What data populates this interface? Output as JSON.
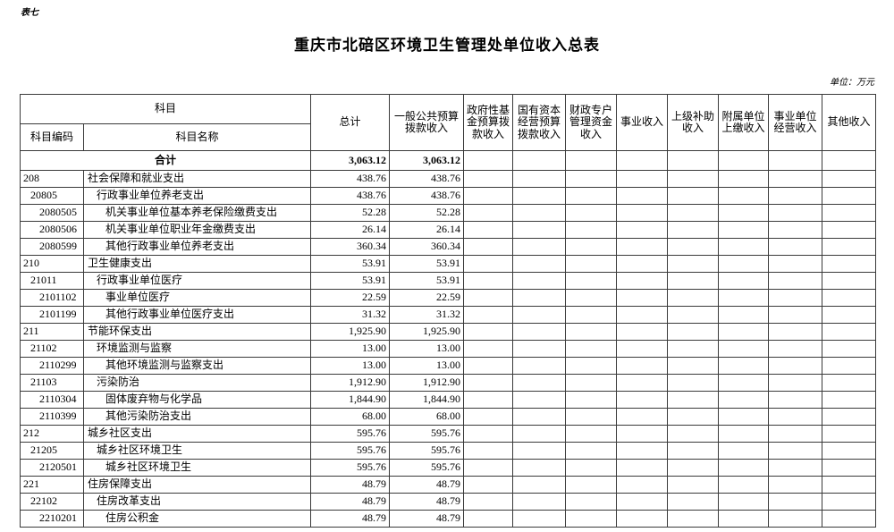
{
  "page": {
    "table_tag": "表七",
    "title": "重庆市北碚区环境卫生管理处单位收入总表",
    "unit_note": "单位：万元"
  },
  "colors": {
    "background": "#ffffff",
    "text": "#000000",
    "grid": "#3a3a3a"
  },
  "table": {
    "header": {
      "subject_group": "科目",
      "code": "科目编码",
      "name": "科目名称",
      "columns": [
        "总计",
        "一般公共预算拨款收入",
        "政府性基金预算拨款收入",
        "国有资本经营预算拨款收入",
        "财政专户管理资金收入",
        "事业收入",
        "上级补助收入",
        "附属单位上缴收入",
        "事业单位经营收入",
        "其他收入"
      ]
    },
    "total_row": {
      "label": "合计",
      "total": "3,063.12",
      "general_public_budget": "3,063.12"
    },
    "rows": [
      {
        "code": "208",
        "name": "社会保障和就业支出",
        "level": 1,
        "total": "438.76",
        "general": "438.76"
      },
      {
        "code": "20805",
        "name": "行政事业单位养老支出",
        "level": 2,
        "total": "438.76",
        "general": "438.76"
      },
      {
        "code": "2080505",
        "name": "机关事业单位基本养老保险缴费支出",
        "level": 3,
        "total": "52.28",
        "general": "52.28"
      },
      {
        "code": "2080506",
        "name": "机关事业单位职业年金缴费支出",
        "level": 3,
        "total": "26.14",
        "general": "26.14"
      },
      {
        "code": "2080599",
        "name": "其他行政事业单位养老支出",
        "level": 3,
        "total": "360.34",
        "general": "360.34"
      },
      {
        "code": "210",
        "name": "卫生健康支出",
        "level": 1,
        "total": "53.91",
        "general": "53.91"
      },
      {
        "code": "21011",
        "name": "行政事业单位医疗",
        "level": 2,
        "total": "53.91",
        "general": "53.91"
      },
      {
        "code": "2101102",
        "name": "事业单位医疗",
        "level": 3,
        "total": "22.59",
        "general": "22.59"
      },
      {
        "code": "2101199",
        "name": "其他行政事业单位医疗支出",
        "level": 3,
        "total": "31.32",
        "general": "31.32"
      },
      {
        "code": "211",
        "name": "节能环保支出",
        "level": 1,
        "total": "1,925.90",
        "general": "1,925.90"
      },
      {
        "code": "21102",
        "name": "环境监测与监察",
        "level": 2,
        "total": "13.00",
        "general": "13.00"
      },
      {
        "code": "2110299",
        "name": "其他环境监测与监察支出",
        "level": 3,
        "total": "13.00",
        "general": "13.00"
      },
      {
        "code": "21103",
        "name": "污染防治",
        "level": 2,
        "total": "1,912.90",
        "general": "1,912.90"
      },
      {
        "code": "2110304",
        "name": "固体废弃物与化学品",
        "level": 3,
        "total": "1,844.90",
        "general": "1,844.90"
      },
      {
        "code": "2110399",
        "name": "其他污染防治支出",
        "level": 3,
        "total": "68.00",
        "general": "68.00"
      },
      {
        "code": "212",
        "name": "城乡社区支出",
        "level": 1,
        "total": "595.76",
        "general": "595.76"
      },
      {
        "code": "21205",
        "name": "城乡社区环境卫生",
        "level": 2,
        "total": "595.76",
        "general": "595.76"
      },
      {
        "code": "2120501",
        "name": "城乡社区环境卫生",
        "level": 3,
        "total": "595.76",
        "general": "595.76"
      },
      {
        "code": "221",
        "name": "住房保障支出",
        "level": 1,
        "total": "48.79",
        "general": "48.79"
      },
      {
        "code": "22102",
        "name": "住房改革支出",
        "level": 2,
        "total": "48.79",
        "general": "48.79"
      },
      {
        "code": "2210201",
        "name": "住房公积金",
        "level": 3,
        "total": "48.79",
        "general": "48.79"
      }
    ]
  }
}
